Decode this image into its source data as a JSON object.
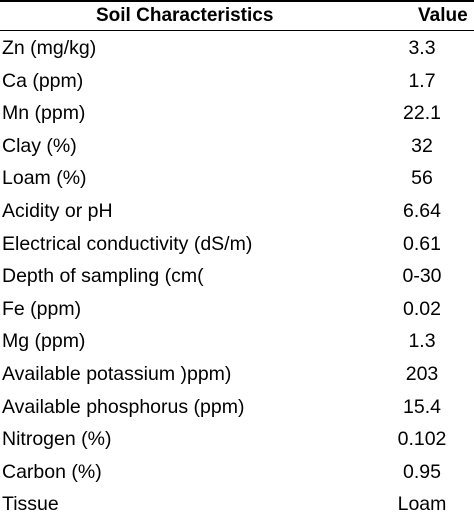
{
  "table": {
    "headers": {
      "parameter": "Soil Characteristics",
      "value": "Value"
    },
    "rows": [
      {
        "parameter": "Zn (mg/kg)",
        "value": "3.3"
      },
      {
        "parameter": "Ca (ppm)",
        "value": "1.7"
      },
      {
        "parameter": "Mn (ppm)",
        "value": "22.1"
      },
      {
        "parameter": "Clay (%)",
        "value": "32"
      },
      {
        "parameter": "Loam (%)",
        "value": "56"
      },
      {
        "parameter": "Acidity or pH",
        "value": "6.64"
      },
      {
        "parameter": "Electrical conductivity (dS/m)",
        "value": "0.61"
      },
      {
        "parameter": "Depth of sampling (cm(",
        "value": "0-30"
      },
      {
        "parameter": "Fe (ppm)",
        "value": "0.02"
      },
      {
        "parameter": "Mg (ppm)",
        "value": "1.3"
      },
      {
        "parameter": "Available potassium )ppm)",
        "value": "203"
      },
      {
        "parameter": "Available phosphorus (ppm)",
        "value": "15.4"
      },
      {
        "parameter": "Nitrogen (%)",
        "value": "0.102"
      },
      {
        "parameter": "Carbon (%)",
        "value": "0.95"
      },
      {
        "parameter": "Tissue",
        "value": "Loam"
      }
    ]
  }
}
